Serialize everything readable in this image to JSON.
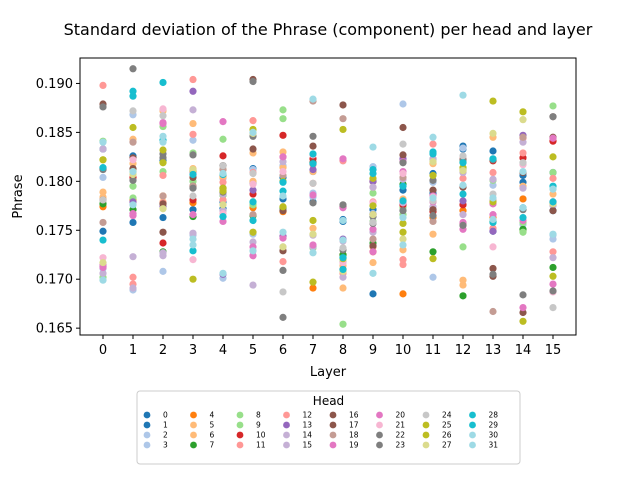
{
  "chart_data": {
    "type": "scatter",
    "title": "Standard deviation of the Phrase (component) per head and layer",
    "xlabel": "Layer",
    "ylabel": "Phrase",
    "x_ticks": [
      "0",
      "1",
      "2",
      "3",
      "4",
      "5",
      "6",
      "7",
      "8",
      "9",
      "10",
      "11",
      "12",
      "13",
      "14",
      "15"
    ],
    "y_ticks": [
      "0.165",
      "0.170",
      "0.175",
      "0.180",
      "0.185",
      "0.190"
    ],
    "ylim": [
      0.1643,
      0.1926
    ],
    "grid": false,
    "legend": {
      "title": "Head",
      "placement": "bottom-center",
      "columns": 8
    },
    "colormap": "tab20",
    "series": [
      {
        "name": "0",
        "color": "#1f77b4",
        "values": [
          0.1749,
          0.1758,
          0.1763,
          0.1771,
          0.1772,
          0.1798,
          0.1804,
          0.1779,
          0.1759,
          0.1771,
          0.1791,
          0.1808,
          0.1833,
          0.1831,
          0.1806,
          0.177
        ]
      },
      {
        "name": "1",
        "color": "#1f77b4",
        "values": [
          0.1833,
          0.1826,
          0.1821,
          0.1811,
          0.1779,
          0.1813,
          0.1782,
          0.181,
          0.1761,
          0.1685,
          0.1777,
          0.1788,
          0.1836,
          0.1749,
          0.1799,
          0.1809
        ]
      },
      {
        "name": "2",
        "color": "#aec7e8",
        "values": [
          0.1804,
          0.1868,
          0.1873,
          0.1842,
          0.1803,
          0.1812,
          0.1816,
          0.1788,
          0.1821,
          0.1815,
          0.1879,
          0.1799,
          0.1834,
          0.1802,
          0.1782,
          0.1741
        ]
      },
      {
        "name": "3",
        "color": "#aec7e8",
        "values": [
          0.1711,
          0.1689,
          0.1708,
          0.1745,
          0.1701,
          0.1746,
          0.1815,
          0.1784,
          0.1725,
          0.1767,
          0.1781,
          0.1702,
          0.1795,
          0.1796,
          0.1756,
          0.1745
        ]
      },
      {
        "name": "4",
        "color": "#ff7f0e",
        "values": [
          0.1774,
          0.1781,
          0.1785,
          0.1778,
          0.1805,
          0.1773,
          0.1769,
          0.1691,
          0.1725,
          0.1728,
          0.1685,
          0.1763,
          0.177,
          0.1763,
          0.1782,
          0.1778
        ]
      },
      {
        "name": "5",
        "color": "#ffbb78",
        "values": [
          0.1789,
          0.1843,
          0.1872,
          0.1859,
          0.1804,
          0.1829,
          0.1814,
          0.181,
          0.1691,
          0.1733,
          0.1782,
          0.1818,
          0.1699,
          0.1845,
          0.1795,
          0.1776
        ]
      },
      {
        "name": "6",
        "color": "#ffbb78",
        "values": [
          0.1784,
          0.1818,
          0.1779,
          0.1813,
          0.1812,
          0.18,
          0.183,
          0.1752,
          0.1714,
          0.1717,
          0.173,
          0.1746,
          0.1694,
          0.1781,
          0.1749,
          0.1787
        ]
      },
      {
        "name": "7",
        "color": "#2ca02c",
        "values": [
          0.1777,
          0.1771,
          0.1728,
          0.1764,
          0.1786,
          0.1765,
          0.1773,
          0.1733,
          0.1725,
          0.1737,
          0.1797,
          0.1728,
          0.1683,
          0.1759,
          0.1751,
          0.1712
        ]
      },
      {
        "name": "8",
        "color": "#98df8a",
        "values": [
          0.1841,
          0.1795,
          0.1856,
          0.1829,
          0.1843,
          0.1779,
          0.1864,
          0.1819,
          0.1654,
          0.1759,
          0.1766,
          0.1822,
          0.1733,
          0.1821,
          0.1748,
          0.1877
        ]
      },
      {
        "name": "9",
        "color": "#98df8a",
        "values": [
          0.1702,
          0.1783,
          0.181,
          0.18,
          0.1786,
          0.1776,
          0.1873,
          0.1732,
          0.1718,
          0.1788,
          0.1773,
          0.1823,
          0.182,
          0.1801,
          0.1758,
          0.1809
        ]
      },
      {
        "name": "10",
        "color": "#d62728",
        "values": [
          0.1813,
          0.1804,
          0.1737,
          0.1781,
          0.1826,
          0.1787,
          0.1847,
          0.1823,
          0.171,
          0.18,
          0.1776,
          0.1769,
          0.1776,
          0.1821,
          0.1824,
          0.1841
        ]
      },
      {
        "name": "11",
        "color": "#ff9896",
        "values": [
          0.1898,
          0.1702,
          0.1806,
          0.1904,
          0.1799,
          0.1862,
          0.1825,
          0.1798,
          0.1821,
          0.1794,
          0.1715,
          0.1838,
          0.1803,
          0.1752,
          0.1844,
          0.1803
        ]
      },
      {
        "name": "12",
        "color": "#ff9896",
        "values": [
          0.1813,
          0.1695,
          0.1778,
          0.1848,
          0.1781,
          0.1809,
          0.1718,
          0.1817,
          0.1706,
          0.1779,
          0.172,
          0.1784,
          0.1823,
          0.1809,
          0.1829,
          0.1728
        ]
      },
      {
        "name": "13",
        "color": "#9467bd",
        "values": [
          0.1713,
          0.1779,
          0.1774,
          0.1892,
          0.1705,
          0.1791,
          0.1744,
          0.1812,
          0.1741,
          0.18,
          0.1823,
          0.1786,
          0.178,
          0.1749,
          0.1847,
          0.1779
        ]
      },
      {
        "name": "14",
        "color": "#c5b0d5",
        "values": [
          0.1706,
          0.1691,
          0.1724,
          0.1747,
          0.177,
          0.1694,
          0.1733,
          0.1745,
          0.1702,
          0.1794,
          0.1778,
          0.1774,
          0.1809,
          0.178,
          0.184,
          0.1722
        ]
      },
      {
        "name": "15",
        "color": "#c5b0d5",
        "values": [
          0.1833,
          0.1723,
          0.1727,
          0.1873,
          0.1787,
          0.1738,
          0.182,
          0.1733,
          0.1739,
          0.1748,
          0.1802,
          0.1823,
          0.1766,
          0.1802,
          0.1793,
          0.1775
        ]
      },
      {
        "name": "16",
        "color": "#8c564b",
        "values": [
          0.1781,
          0.1824,
          0.1777,
          0.1795,
          0.1816,
          0.1833,
          0.1729,
          0.1836,
          0.1774,
          0.1734,
          0.1827,
          0.1771,
          0.1794,
          0.1711,
          0.1809,
          0.1845
        ]
      },
      {
        "name": "17",
        "color": "#8c564b",
        "values": [
          0.1879,
          0.1813,
          0.1748,
          0.1804,
          0.1793,
          0.1904,
          0.177,
          0.1819,
          0.1878,
          0.1766,
          0.1855,
          0.1791,
          0.1757,
          0.1703,
          0.1666,
          0.177
        ]
      },
      {
        "name": "18",
        "color": "#c49c94",
        "values": [
          0.1758,
          0.184,
          0.1785,
          0.1795,
          0.1812,
          0.1766,
          0.1806,
          0.1882,
          0.1864,
          0.1741,
          0.1804,
          0.1759,
          0.1756,
          0.1667,
          0.1845,
          0.1866
        ]
      },
      {
        "name": "19",
        "color": "#e377c2",
        "values": [
          0.1715,
          0.1765,
          0.1859,
          0.1809,
          0.1861,
          0.1733,
          0.1825,
          0.1786,
          0.1823,
          0.1751,
          0.181,
          0.1785,
          0.1751,
          0.1766,
          0.1671,
          0.1844
        ]
      },
      {
        "name": "20",
        "color": "#e377c2",
        "values": [
          0.1712,
          0.1767,
          0.186,
          0.1766,
          0.1759,
          0.1724,
          0.1742,
          0.1735,
          0.1773,
          0.1728,
          0.182,
          0.1779,
          0.1758,
          0.1777,
          0.176,
          0.1695
        ]
      },
      {
        "name": "21",
        "color": "#f7b6d2",
        "values": [
          0.1722,
          0.1822,
          0.1874,
          0.172,
          0.1767,
          0.1797,
          0.181,
          0.1827,
          0.1717,
          0.1778,
          0.1808,
          0.1784,
          0.1812,
          0.1733,
          0.1817,
          0.1687
        ]
      },
      {
        "name": "22",
        "color": "#7f7f7f",
        "values": [
          0.1876,
          0.1915,
          0.1828,
          0.1827,
          0.1789,
          0.1902,
          0.1661,
          0.1846,
          0.1776,
          0.1757,
          0.177,
          0.1801,
          0.1755,
          0.1705,
          0.1684,
          0.1866
        ]
      },
      {
        "name": "23",
        "color": "#7f7f7f",
        "values": [
          0.1812,
          0.1801,
          0.1824,
          0.1793,
          0.1816,
          0.1846,
          0.1709,
          0.1778,
          0.173,
          0.1764,
          0.1819,
          0.1765,
          0.1822,
          0.1822,
          0.1771,
          0.1688
        ]
      },
      {
        "name": "24",
        "color": "#c7c7c7",
        "values": [
          0.1781,
          0.1872,
          0.1867,
          0.1785,
          0.1816,
          0.1808,
          0.1687,
          0.1798,
          0.1732,
          0.1758,
          0.1838,
          0.178,
          0.1826,
          0.1787,
          0.1819,
          0.1671
        ]
      },
      {
        "name": "25",
        "color": "#bcbd22",
        "values": [
          0.1822,
          0.1855,
          0.1832,
          0.1811,
          0.179,
          0.1748,
          0.18,
          0.1697,
          0.1853,
          0.1775,
          0.1757,
          0.1806,
          0.1814,
          0.1882,
          0.1657,
          0.1703
        ]
      },
      {
        "name": "26",
        "color": "#bcbd22",
        "values": [
          0.1822,
          0.181,
          0.1819,
          0.17,
          0.1793,
          0.1853,
          0.1774,
          0.176,
          0.1721,
          0.1803,
          0.1748,
          0.1721,
          0.1811,
          0.1779,
          0.1871,
          0.1825
        ]
      },
      {
        "name": "27",
        "color": "#dbdb8d",
        "values": [
          0.1717,
          0.1807,
          0.1772,
          0.1812,
          0.1776,
          0.1849,
          0.1733,
          0.1746,
          0.1708,
          0.1766,
          0.1741,
          0.182,
          0.1811,
          0.1849,
          0.1863,
          0.1777
        ]
      },
      {
        "name": "28",
        "color": "#17becf",
        "values": [
          0.174,
          0.1892,
          0.1901,
          0.1729,
          0.1764,
          0.1779,
          0.1799,
          0.1818,
          0.1722,
          0.1808,
          0.1795,
          0.1828,
          0.1819,
          0.1823,
          0.1763,
          0.1779
        ]
      },
      {
        "name": "29",
        "color": "#17becf",
        "values": [
          0.1814,
          0.1887,
          0.1842,
          0.1807,
          0.1807,
          0.176,
          0.179,
          0.1828,
          0.171,
          0.1812,
          0.178,
          0.183,
          0.1787,
          0.1758,
          0.1773,
          0.1795
        ]
      },
      {
        "name": "30",
        "color": "#9edae5",
        "values": [
          0.184,
          0.181,
          0.1846,
          0.1741,
          0.1808,
          0.185,
          0.1748,
          0.1884,
          0.174,
          0.1835,
          0.1735,
          0.1845,
          0.1888,
          0.1783,
          0.181,
          0.1746
        ]
      },
      {
        "name": "31",
        "color": "#9edae5",
        "values": [
          0.1699,
          0.1776,
          0.184,
          0.1735,
          0.1706,
          0.1729,
          0.1785,
          0.1727,
          0.176,
          0.1706,
          0.1763,
          0.1783,
          0.1796,
          0.1761,
          0.1773,
          0.1792
        ]
      }
    ]
  }
}
